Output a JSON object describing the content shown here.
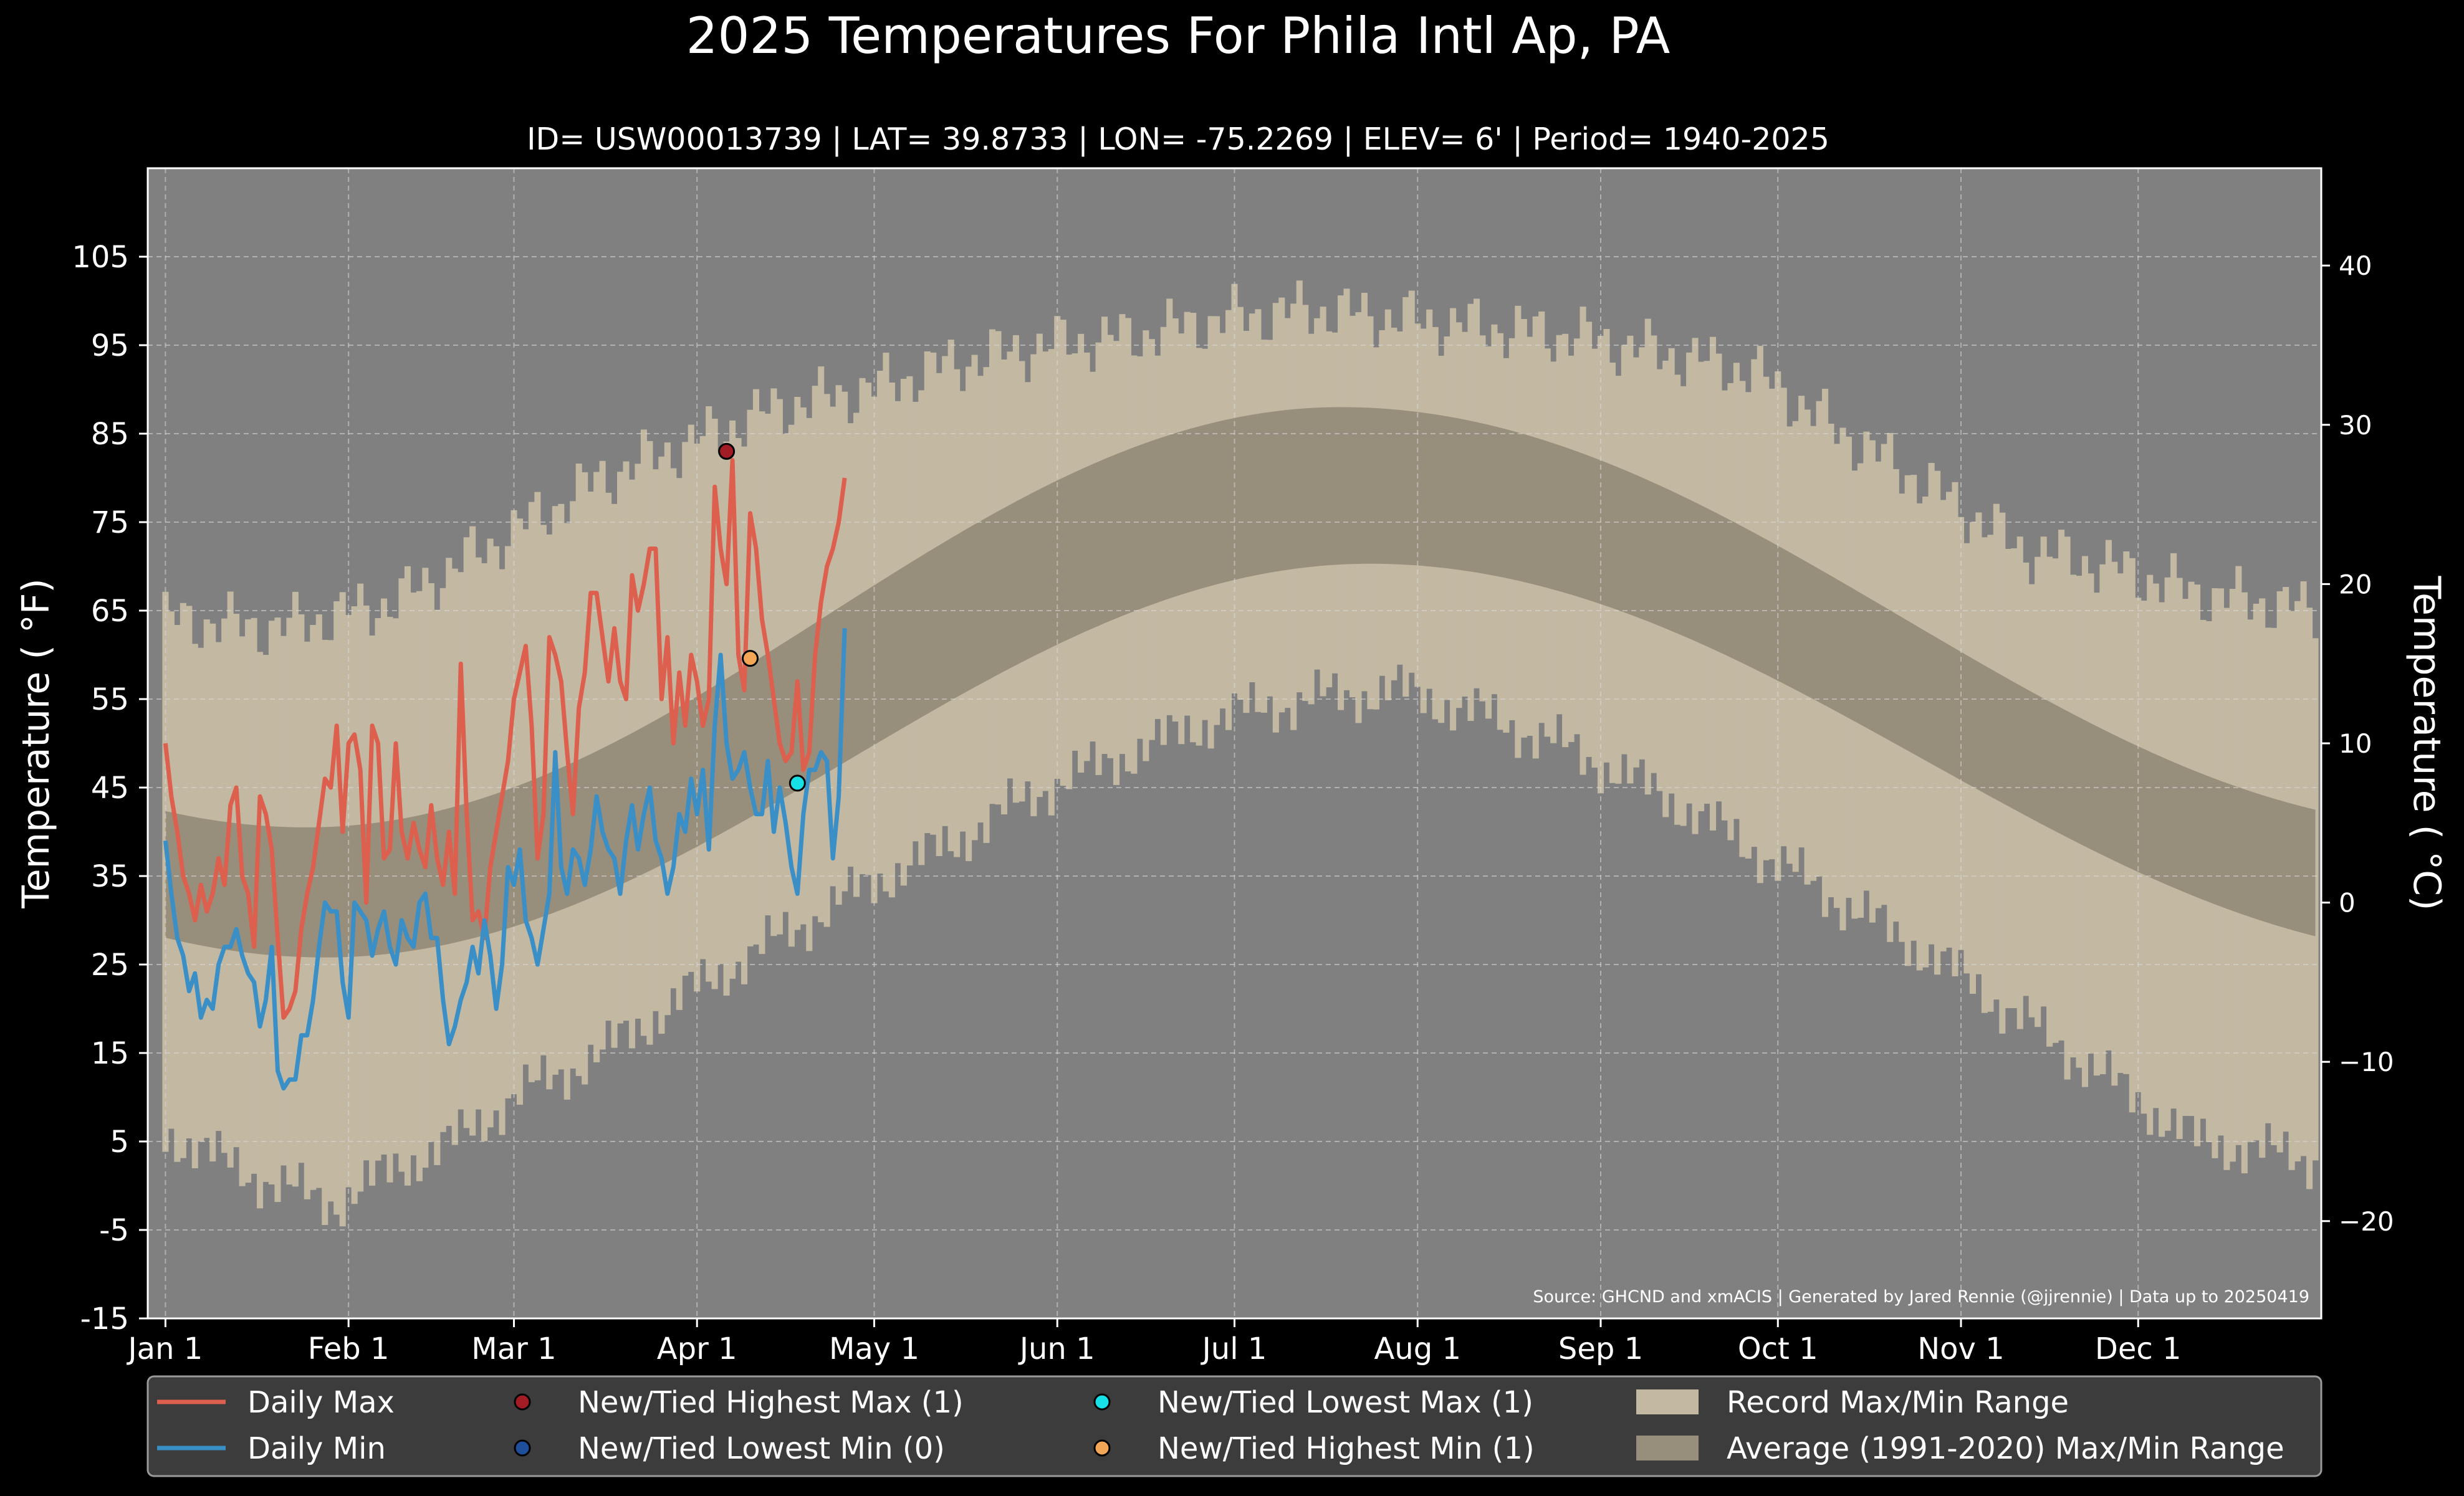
{
  "chart_data": {
    "type": "area",
    "title": "2025 Temperatures For Phila Intl Ap, PA",
    "subtitle": "ID= USW00013739 | LAT= 39.8733 | LON= -75.2269 | ELEV= 6' | Period= 1940-2025",
    "ylabel": "Temperature ( °F)",
    "ylabel_right": "Temperature ( °C)",
    "source": "Source: GHCND and xmACIS | Generated by Jared Rennie (@jjrennie) | Data up to 20250419",
    "ylim": [
      -15,
      115
    ],
    "xlim_day": [
      -2,
      366
    ],
    "grid": true,
    "legend_position": "bottom",
    "y_ticks": [
      -15,
      -5,
      5,
      15,
      25,
      35,
      45,
      55,
      65,
      75,
      85,
      95,
      105
    ],
    "y_tick_labels": [
      "-15",
      "-5",
      "5",
      "15",
      "25",
      "35",
      "45",
      "55",
      "65",
      "75",
      "85",
      "95",
      "105"
    ],
    "y2_ticks": [
      -20,
      -10,
      0,
      10,
      20,
      30,
      40
    ],
    "y2_tick_labels": [
      "−20",
      "−10",
      "0",
      "10",
      "20",
      "30",
      "40"
    ],
    "x_ticks": [
      {
        "day": 1,
        "label": "Jan 1"
      },
      {
        "day": 32,
        "label": "Feb 1"
      },
      {
        "day": 60,
        "label": "Mar 1"
      },
      {
        "day": 91,
        "label": "Apr 1"
      },
      {
        "day": 121,
        "label": "May 1"
      },
      {
        "day": 152,
        "label": "Jun 1"
      },
      {
        "day": 182,
        "label": "Jul 1"
      },
      {
        "day": 213,
        "label": "Aug 1"
      },
      {
        "day": 244,
        "label": "Sep 1"
      },
      {
        "day": 274,
        "label": "Oct 1"
      },
      {
        "day": 305,
        "label": "Nov 1"
      },
      {
        "day": 335,
        "label": "Dec 1"
      }
    ],
    "record_max_anchors": [
      [
        1,
        64
      ],
      [
        20,
        63
      ],
      [
        40,
        66
      ],
      [
        60,
        74
      ],
      [
        75,
        80
      ],
      [
        90,
        84
      ],
      [
        105,
        88
      ],
      [
        120,
        90
      ],
      [
        135,
        93
      ],
      [
        150,
        95
      ],
      [
        165,
        96
      ],
      [
        180,
        98
      ],
      [
        195,
        99
      ],
      [
        210,
        98
      ],
      [
        225,
        97
      ],
      [
        240,
        96
      ],
      [
        255,
        94
      ],
      [
        270,
        92
      ],
      [
        285,
        85
      ],
      [
        300,
        79
      ],
      [
        315,
        72
      ],
      [
        330,
        70
      ],
      [
        345,
        67
      ],
      [
        365,
        65
      ]
    ],
    "record_min_anchors": [
      [
        1,
        6
      ],
      [
        10,
        3
      ],
      [
        20,
        0
      ],
      [
        30,
        -2
      ],
      [
        40,
        2
      ],
      [
        50,
        5
      ],
      [
        60,
        10
      ],
      [
        75,
        15
      ],
      [
        90,
        22
      ],
      [
        105,
        28
      ],
      [
        120,
        34
      ],
      [
        135,
        39
      ],
      [
        150,
        45
      ],
      [
        165,
        49
      ],
      [
        180,
        53
      ],
      [
        195,
        55
      ],
      [
        210,
        56
      ],
      [
        225,
        53
      ],
      [
        240,
        49
      ],
      [
        255,
        44
      ],
      [
        270,
        38
      ],
      [
        285,
        32
      ],
      [
        300,
        26
      ],
      [
        315,
        19
      ],
      [
        330,
        12
      ],
      [
        345,
        5
      ],
      [
        365,
        3
      ]
    ],
    "avg_max": {
      "min": 40.5,
      "min_day": 25,
      "max": 88.0,
      "max_day": 200
    },
    "avg_min": {
      "min": 25.8,
      "min_day": 28,
      "max": 70.3,
      "max_day": 205
    },
    "series": [
      {
        "name": "Daily Max",
        "color": "#dd5f4e",
        "values": [
          50,
          44,
          40,
          35,
          33,
          30,
          34,
          31,
          33,
          37,
          34,
          43,
          45,
          35,
          33,
          27,
          44,
          42,
          38,
          28,
          19,
          20,
          22,
          29,
          33,
          36,
          41,
          46,
          45,
          52,
          40,
          50,
          51,
          47,
          32,
          52,
          50,
          37,
          38,
          50,
          40,
          37,
          41,
          38,
          36,
          43,
          37,
          34,
          40,
          33,
          59,
          42,
          30,
          31,
          28,
          36,
          40,
          44,
          48,
          55,
          58,
          61,
          52,
          37,
          42,
          62,
          60,
          57,
          49,
          42,
          54,
          58,
          67,
          67,
          62,
          57,
          63,
          57,
          55,
          69,
          65,
          68,
          72,
          72,
          55,
          62,
          50,
          58,
          52,
          60,
          57,
          52,
          55,
          79,
          72,
          68,
          82,
          60,
          56,
          76,
          72,
          64,
          60,
          55,
          50,
          48,
          49,
          57,
          47,
          49,
          60,
          66,
          70,
          72,
          75,
          80
        ]
      },
      {
        "name": "Daily Min",
        "color": "#3a8fc7",
        "values": [
          39,
          33,
          28,
          26,
          22,
          24,
          19,
          21,
          20,
          25,
          27,
          27,
          29,
          26,
          24,
          23,
          18,
          21,
          27,
          13,
          11,
          12,
          12,
          17,
          17,
          21,
          27,
          32,
          31,
          31,
          23,
          19,
          32,
          31,
          30,
          26,
          29,
          31,
          27,
          25,
          30,
          28,
          27,
          32,
          33,
          28,
          28,
          21,
          16,
          18,
          21,
          23,
          27,
          24,
          30,
          26,
          20,
          25,
          36,
          34,
          38,
          30,
          28,
          25,
          29,
          33,
          49,
          36,
          33,
          38,
          37,
          34,
          38,
          44,
          40,
          38,
          37,
          33,
          39,
          43,
          38,
          42,
          45,
          39,
          37,
          33,
          36,
          42,
          40,
          46,
          42,
          47,
          38,
          52,
          60,
          50,
          46,
          47,
          49,
          45,
          42,
          42,
          48,
          40,
          45,
          41,
          36,
          33,
          42,
          47,
          47,
          49,
          48,
          37,
          44,
          63
        ]
      }
    ],
    "record_points": [
      {
        "name": "New/Tied Highest Max (1)",
        "color": "#a11c25",
        "day": 96,
        "value": 83
      },
      {
        "name": "New/Tied Highest Min (1)",
        "color": "#f2a656",
        "day": 100,
        "value": 59.6
      },
      {
        "name": "New/Tied Lowest Max (1)",
        "color": "#17e0e6",
        "day": 108,
        "value": 45.5
      }
    ],
    "legend": [
      {
        "label": "Daily Max",
        "kind": "line",
        "color": "#dd5f4e"
      },
      {
        "label": "Daily Min",
        "kind": "line",
        "color": "#3a8fc7"
      },
      {
        "label": "New/Tied Highest Max (1)",
        "kind": "dot",
        "color": "#a11c25"
      },
      {
        "label": "New/Tied Lowest Min (0)",
        "kind": "dot",
        "color": "#1f4e9a"
      },
      {
        "label": "New/Tied Lowest Max (1)",
        "kind": "dot",
        "color": "#17e0e6"
      },
      {
        "label": "New/Tied Highest Min (1)",
        "kind": "dot",
        "color": "#f2a656"
      },
      {
        "label": "Record Max/Min Range",
        "kind": "patch",
        "color": "#c3b9a3"
      },
      {
        "label": "Average (1991-2020) Max/Min Range",
        "kind": "patch",
        "color": "#978e7c"
      }
    ],
    "colors": {
      "background": "#000000",
      "plot_background": "#808080",
      "record_band": "#c3b9a3",
      "average_band": "#978e7c",
      "legend_background": "#3c3c3c"
    }
  }
}
